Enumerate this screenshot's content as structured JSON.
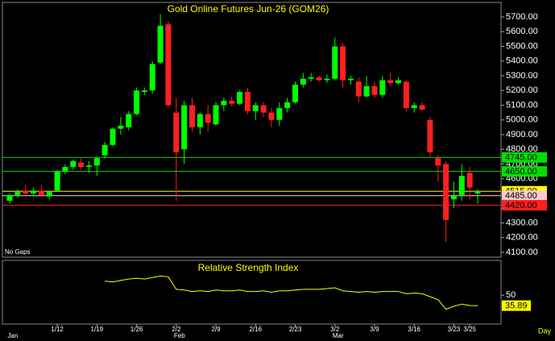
{
  "chart_data": {
    "type": "candlestick",
    "title": "Gold Online Futures Jun-26 (GOM26)",
    "note": "No Gaps",
    "x_unit": "Day",
    "categories": [
      null,
      null,
      null,
      null,
      null,
      null,
      "1/12",
      null,
      null,
      null,
      null,
      "1/19",
      null,
      null,
      null,
      null,
      "1/26",
      null,
      null,
      null,
      null,
      "2/2",
      null,
      null,
      null,
      null,
      "2/9",
      null,
      null,
      null,
      null,
      "2/16",
      null,
      null,
      null,
      null,
      "2/23",
      null,
      null,
      null,
      null,
      "3/2",
      null,
      null,
      null,
      null,
      "3/9",
      null,
      null,
      null,
      null,
      "3/16",
      null,
      null,
      null,
      null,
      "3/23",
      null,
      "3/25",
      null
    ],
    "months": [
      "Jan",
      null,
      null,
      null,
      null,
      null,
      null,
      null,
      null,
      null,
      null,
      null,
      null,
      null,
      null,
      null,
      null,
      null,
      null,
      null,
      null,
      "Feb",
      null,
      null,
      null,
      null,
      null,
      null,
      null,
      null,
      null,
      null,
      null,
      null,
      null,
      null,
      null,
      null,
      null,
      null,
      null,
      "Mar",
      null,
      null,
      null,
      null,
      null,
      null,
      null,
      null,
      null,
      null,
      null,
      null,
      null,
      null,
      null,
      null,
      null,
      null
    ],
    "up_color": "#00ff00",
    "down_color": "#ff2020",
    "open": [
      4450,
      4490,
      4520,
      4500,
      4520,
      4480,
      4520,
      4650,
      4680,
      4710,
      4680,
      4690,
      4760,
      4830,
      4940,
      4950,
      5040,
      5190,
      5200,
      5390,
      5650,
      5050,
      4800,
      5100,
      4950,
      5040,
      4970,
      5100,
      5130,
      5110,
      5190,
      5060,
      5100,
      5050,
      5000,
      5080,
      5120,
      5240,
      5280,
      5290,
      5270,
      5280,
      5500,
      5270,
      5260,
      5160,
      5230,
      5170,
      5270,
      5250,
      5260,
      5080,
      5100,
      5000,
      4740,
      4700,
      4460,
      4490,
      4640,
      4500
    ],
    "high": [
      4500,
      4530,
      4560,
      4540,
      4560,
      4520,
      4660,
      4700,
      4730,
      4740,
      4720,
      4750,
      4850,
      4950,
      5020,
      5060,
      5220,
      5220,
      5400,
      5720,
      5670,
      5150,
      5130,
      5150,
      5050,
      5100,
      5120,
      5150,
      5160,
      5200,
      5220,
      5120,
      5120,
      5080,
      5120,
      5150,
      5260,
      5320,
      5320,
      5300,
      5310,
      5560,
      5520,
      5300,
      5290,
      5300,
      5260,
      5300,
      5320,
      5290,
      5270,
      5120,
      5120,
      5020,
      4760,
      4720,
      4580,
      4700,
      4680,
      4530
    ],
    "low": [
      4430,
      4470,
      4490,
      4480,
      4480,
      4460,
      4510,
      4630,
      4660,
      4660,
      4640,
      4620,
      4740,
      4820,
      4900,
      4930,
      5030,
      5170,
      5180,
      5380,
      5090,
      4450,
      4700,
      4920,
      4900,
      4920,
      4960,
      5060,
      5090,
      5100,
      5040,
      5000,
      5020,
      4950,
      4960,
      5050,
      5110,
      5220,
      5260,
      5260,
      5250,
      5270,
      5220,
      5240,
      5120,
      5150,
      5150,
      5150,
      5230,
      5240,
      5060,
      5050,
      5060,
      4750,
      4580,
      4170,
      4400,
      4450,
      4460,
      4430
    ],
    "close": [
      4490,
      4510,
      4500,
      4520,
      4490,
      4510,
      4650,
      4680,
      4720,
      4680,
      4690,
      4740,
      4830,
      4940,
      4960,
      5040,
      5200,
      5200,
      5380,
      5640,
      5100,
      4780,
      5100,
      4950,
      5040,
      4980,
      5100,
      5130,
      5110,
      5190,
      5060,
      5100,
      5050,
      5000,
      5080,
      5120,
      5240,
      5280,
      5290,
      5270,
      5280,
      5500,
      5270,
      5280,
      5160,
      5230,
      5170,
      5270,
      5250,
      5270,
      5080,
      5100,
      5070,
      4780,
      4690,
      4320,
      4490,
      4620,
      4540,
      4510
    ],
    "ylim": [
      4100,
      5740
    ],
    "yticks": [
      {
        "value": 4100,
        "label": "4100.00"
      },
      {
        "value": 4200,
        "label": "4200.00"
      },
      {
        "value": 4300,
        "label": "4300.00"
      },
      {
        "value": 4400,
        "label": "4400.00"
      },
      {
        "value": 4500,
        "label": "4500.00"
      },
      {
        "value": 4600,
        "label": "4600.00"
      },
      {
        "value": 4700,
        "label": "4700.00"
      },
      {
        "value": 4800,
        "label": "4800.00"
      },
      {
        "value": 4900,
        "label": "4900.00"
      },
      {
        "value": 5000,
        "label": "5000.00"
      },
      {
        "value": 5100,
        "label": "5100.00"
      },
      {
        "value": 5200,
        "label": "5200.00"
      },
      {
        "value": 5300,
        "label": "5300.00"
      },
      {
        "value": 5400,
        "label": "5400.00"
      },
      {
        "value": 5500,
        "label": "5500.00"
      },
      {
        "value": 5600,
        "label": "5600.00"
      },
      {
        "value": 5700,
        "label": "5700.00"
      }
    ],
    "levels": [
      {
        "value": 4745,
        "label": "4745.00",
        "color": "#00e000",
        "text_color": "#000000"
      },
      {
        "value": 4650,
        "label": "4650.00",
        "color": "#00e000",
        "text_color": "#000000"
      },
      {
        "value": 4515,
        "label": "4515.00",
        "color": "#ffff00",
        "text_color": "#000000"
      },
      {
        "value": 4485,
        "label": "4485.00",
        "color": "#ffc8c8",
        "text_color": "#000000"
      },
      {
        "value": 4420,
        "label": "4420.00",
        "color": "#ff2020",
        "text_color": "#000000"
      }
    ],
    "rsi": {
      "title": "Relative Strength Index",
      "color": "#ffff00",
      "ylim": [
        12,
        95
      ],
      "yticks": [
        50
      ],
      "values": [
        null,
        null,
        null,
        null,
        null,
        null,
        null,
        null,
        null,
        null,
        null,
        null,
        69,
        68,
        70,
        72,
        73,
        72,
        74,
        76,
        75,
        58,
        57,
        55,
        56,
        55,
        57,
        56,
        56,
        57,
        55,
        55,
        56,
        54,
        56,
        56,
        57,
        58,
        58,
        58,
        59,
        60,
        56,
        55,
        54,
        55,
        54,
        55,
        55,
        55,
        52,
        53,
        52,
        48,
        44,
        31,
        35,
        38,
        36,
        35.89
      ]
    }
  }
}
